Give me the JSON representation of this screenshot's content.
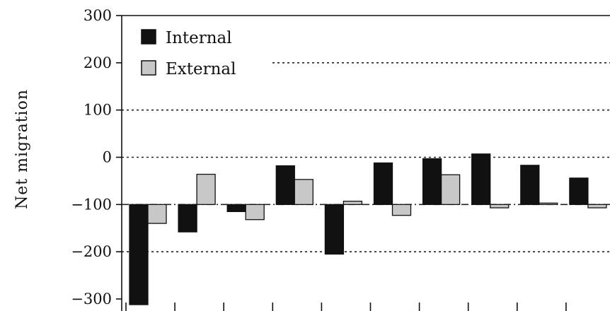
{
  "chart_data": {
    "type": "bar",
    "ylabel": "Net migration",
    "xlabel": "",
    "ylim": [
      -300,
      300
    ],
    "yticks": [
      300,
      200,
      100,
      0,
      -100,
      -200,
      -300
    ],
    "baseline": -100,
    "grid": true,
    "legend_position": "top-left",
    "categories": [
      "",
      "",
      "",
      "",
      "",
      "",
      "",
      "",
      "",
      ""
    ],
    "series": [
      {
        "name": "Internal",
        "color": "#111111",
        "values": [
          -312,
          -158,
          -115,
          -18,
          -205,
          -12,
          -3,
          7,
          -17,
          -44
        ]
      },
      {
        "name": "External",
        "color": "#c8c8c8",
        "values": [
          -140,
          -36,
          -132,
          -47,
          -93,
          -123,
          -37,
          -107,
          -97,
          -107
        ]
      }
    ]
  }
}
